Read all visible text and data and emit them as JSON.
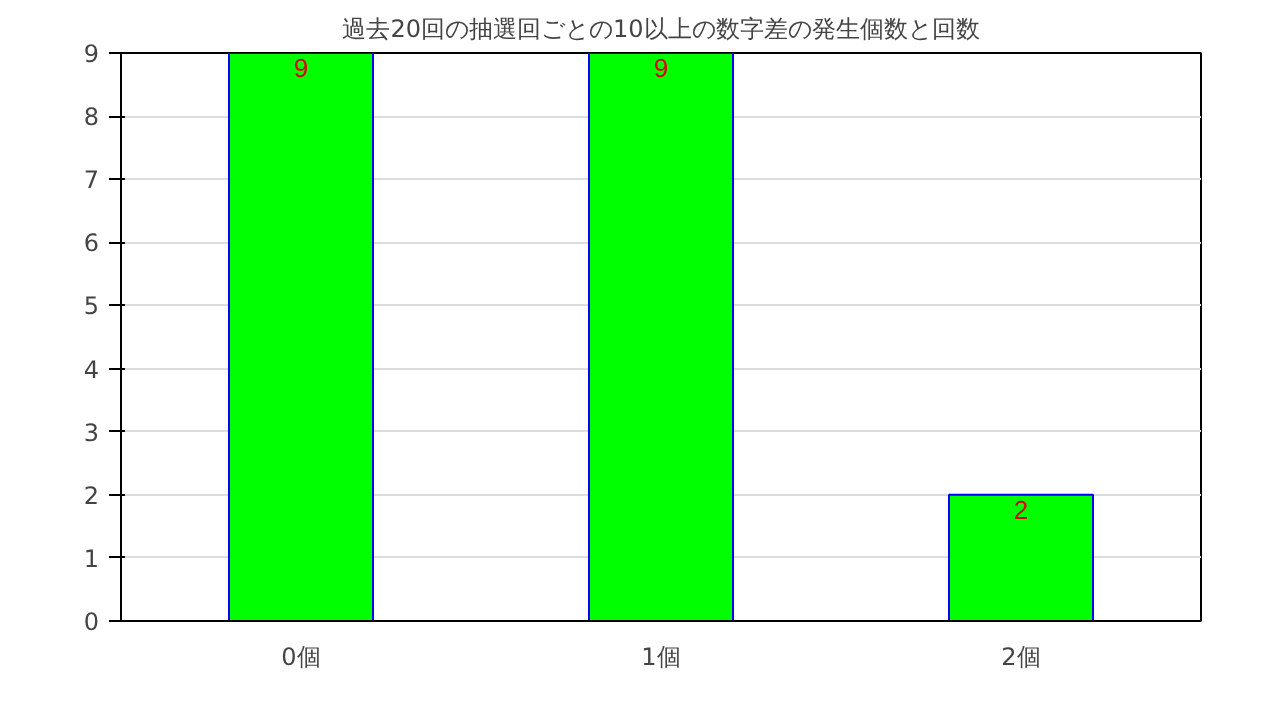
{
  "chart_data": {
    "type": "bar",
    "title": "過去20回の抽選回ごとの10以上の数字差の発生個数と回数",
    "categories": [
      "0個",
      "1個",
      "2個"
    ],
    "values": [
      9,
      9,
      2
    ],
    "color": "#00ff00",
    "ylim": [
      0,
      9
    ],
    "yticks": [
      0,
      1,
      2,
      3,
      4,
      5,
      6,
      7,
      8,
      9
    ],
    "grid": "y",
    "data_labels": true
  }
}
